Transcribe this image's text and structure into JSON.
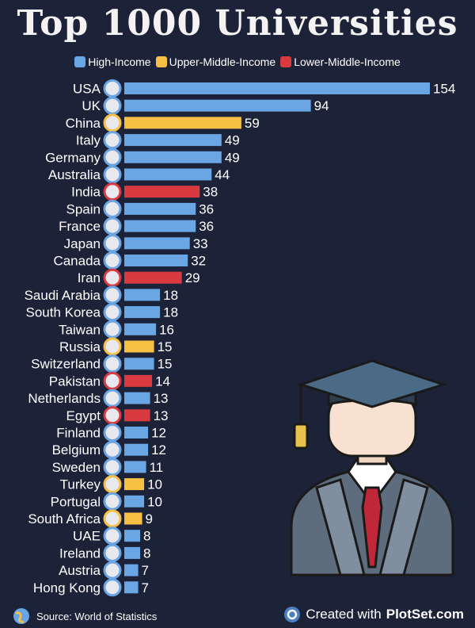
{
  "title": "Top 1000 Universities",
  "footer": {
    "source": "Source: World of Statistics",
    "created_prefix": "Created with",
    "created_brand": "PlotSet.com"
  },
  "colors": {
    "High-Income": "#6aa6e4",
    "Upper-Middle-Income": "#f5c043",
    "Lower-Middle-Income": "#d93a3f",
    "background": "#1c2238"
  },
  "chart_data": {
    "type": "bar",
    "orientation": "horizontal",
    "title": "Top 1000 Universities",
    "legend": [
      "High-Income",
      "Upper-Middle-Income",
      "Lower-Middle-Income"
    ],
    "legend_position": "top",
    "grid": false,
    "xlim": [
      0,
      154
    ],
    "categories": [
      "USA",
      "UK",
      "China",
      "Italy",
      "Germany",
      "Australia",
      "India",
      "Spain",
      "France",
      "Japan",
      "Canada",
      "Iran",
      "Saudi Arabia",
      "South Korea",
      "Taiwan",
      "Russia",
      "Switzerland",
      "Pakistan",
      "Netherlands",
      "Egypt",
      "Finland",
      "Belgium",
      "Sweden",
      "Turkey",
      "Portugal",
      "South Africa",
      "UAE",
      "Ireland",
      "Austria",
      "Hong Kong"
    ],
    "values": [
      154,
      94,
      59,
      49,
      49,
      44,
      38,
      36,
      36,
      33,
      32,
      29,
      18,
      18,
      16,
      15,
      15,
      14,
      13,
      13,
      12,
      12,
      11,
      10,
      10,
      9,
      8,
      8,
      7,
      7
    ],
    "groups": [
      "High-Income",
      "High-Income",
      "Upper-Middle-Income",
      "High-Income",
      "High-Income",
      "High-Income",
      "Lower-Middle-Income",
      "High-Income",
      "High-Income",
      "High-Income",
      "High-Income",
      "Lower-Middle-Income",
      "High-Income",
      "High-Income",
      "High-Income",
      "Upper-Middle-Income",
      "High-Income",
      "Lower-Middle-Income",
      "High-Income",
      "Lower-Middle-Income",
      "High-Income",
      "High-Income",
      "High-Income",
      "Upper-Middle-Income",
      "High-Income",
      "Upper-Middle-Income",
      "High-Income",
      "High-Income",
      "High-Income",
      "High-Income"
    ]
  }
}
